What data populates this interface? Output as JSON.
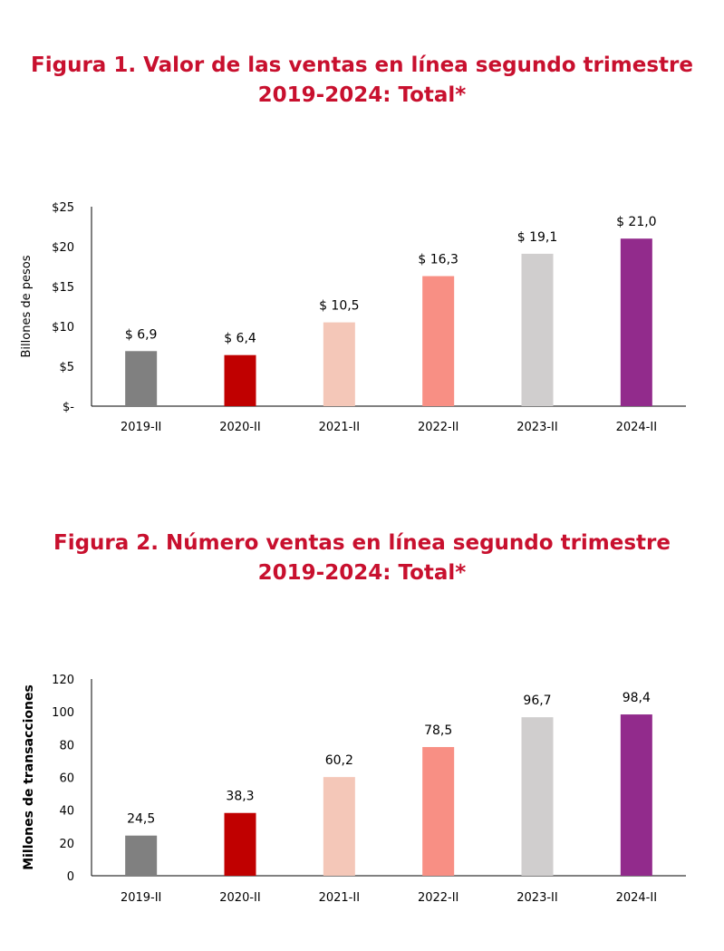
{
  "figures": [
    {
      "title_line1": "Figura 1. Valor de las ventas en línea segundo trimestre",
      "title_line2": "2019-2024: Total*"
    },
    {
      "title_line1": "Figura 2. Número ventas en línea segundo trimestre",
      "title_line2": "2019-2024: Total*"
    }
  ],
  "chart_data": [
    {
      "type": "bar",
      "categories": [
        "2019-II",
        "2020-II",
        "2021-II",
        "2022-II",
        "2023-II",
        "2024-II"
      ],
      "values": [
        6.9,
        6.4,
        10.5,
        16.3,
        19.1,
        21.0
      ],
      "data_labels": [
        "$ 6,9",
        "$ 6,4",
        "$ 10,5",
        "$ 16,3",
        "$ 19,1",
        "$ 21,0"
      ],
      "colors": [
        "#808080",
        "#c00000",
        "#f4c7b8",
        "#f88f84",
        "#d0cece",
        "#922b8c"
      ],
      "ylabel": "Billones de pesos",
      "ylim": [
        0,
        25
      ],
      "yticks": [
        0,
        5,
        10,
        15,
        20,
        25
      ],
      "ytick_labels": [
        "$-",
        "$5",
        "$10",
        "$15",
        "$20",
        "$25"
      ],
      "grid": false,
      "legend": "none"
    },
    {
      "type": "bar",
      "categories": [
        "2019-II",
        "2020-II",
        "2021-II",
        "2022-II",
        "2023-II",
        "2024-II"
      ],
      "values": [
        24.5,
        38.3,
        60.2,
        78.5,
        96.7,
        98.4
      ],
      "data_labels": [
        "24,5",
        "38,3",
        "60,2",
        "78,5",
        "96,7",
        "98,4"
      ],
      "colors": [
        "#808080",
        "#c00000",
        "#f4c7b8",
        "#f88f84",
        "#d0cece",
        "#922b8c"
      ],
      "ylabel": "Millones de transacciones",
      "ylim": [
        0,
        120
      ],
      "yticks": [
        0,
        20,
        40,
        60,
        80,
        100,
        120
      ],
      "ytick_labels": [
        "0",
        "20",
        "40",
        "60",
        "80",
        "100",
        "120"
      ],
      "grid": false,
      "legend": "none"
    }
  ]
}
